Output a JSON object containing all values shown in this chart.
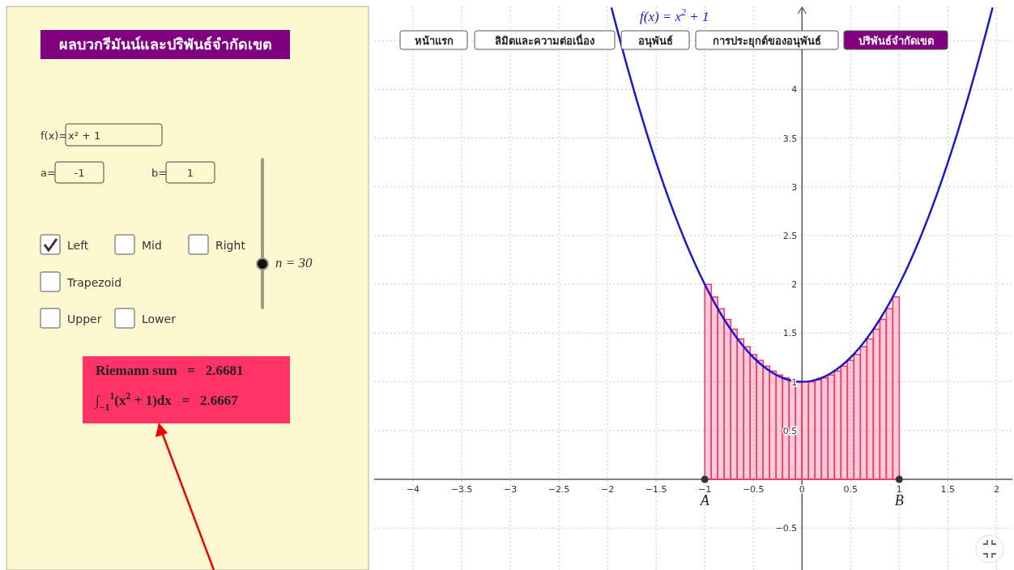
{
  "chart_data": {
    "type": "histogram",
    "title": "ผลบวกรีมันน์และปริพันธ์จำกัดเขต",
    "xlim": [
      -4.4,
      2.18
    ],
    "ylim": [
      -0.93,
      4.85
    ],
    "xticks": [
      {
        "value": -4,
        "label": "−4"
      },
      {
        "value": -3.5,
        "label": "−3.5"
      },
      {
        "value": -3,
        "label": "−3"
      },
      {
        "value": -2.5,
        "label": "−2.5"
      },
      {
        "value": -2,
        "label": "−2"
      },
      {
        "value": -1.5,
        "label": "−1.5"
      },
      {
        "value": -1,
        "label": "−1"
      },
      {
        "value": -0.5,
        "label": "−0.5"
      },
      0,
      0.5,
      1,
      1.5,
      2
    ],
    "yticks": [
      {
        "value": -0.5,
        "label": "−0.5"
      },
      0.5,
      1,
      1.5,
      2,
      2.5,
      3,
      3.5,
      4,
      {
        "value": 4.5,
        "label": null
      }
    ],
    "grid": true,
    "series": [
      {
        "color": "#ff3366",
        "bins": [
          -1,
          -0.9333,
          -0.8667,
          -0.8,
          -0.7333,
          -0.6667,
          -0.6,
          -0.5333,
          -0.4667,
          -0.4,
          -0.3333,
          -0.2667,
          -0.2,
          -0.1333,
          -0.0667,
          0,
          0.0667,
          0.1333,
          0.2,
          0.2667,
          0.3333,
          0.4,
          0.4667,
          0.5333,
          0.6,
          0.6667,
          0.7333,
          0.8,
          0.8667,
          0.9333,
          1
        ],
        "values": [
          2,
          1.87,
          1.75,
          1.64,
          1.54,
          1.44,
          1.36,
          1.28,
          1.22,
          1.16,
          1.11,
          1.07,
          1.04,
          1.02,
          1,
          1,
          1,
          1.02,
          1.04,
          1.07,
          1.11,
          1.16,
          1.22,
          1.28,
          1.36,
          1.44,
          1.54,
          1.64,
          1.75,
          1.87
        ]
      },
      {
        "type": "line",
        "name": "f(x) = x$^{2}$ + 1",
        "color": "#1a1acc",
        "x": [
          -1.96,
          -1.9,
          -1.8,
          -1.7,
          -1.6,
          -1.5,
          -1.4,
          -1.3,
          -1.2,
          -1.1,
          -1,
          -0.9,
          -0.8,
          -0.7,
          -0.6,
          -0.5,
          -0.4,
          -0.3,
          -0.2,
          -0.1,
          0,
          0.1,
          0.2,
          0.3,
          0.4,
          0.5,
          0.6,
          0.7,
          0.8,
          0.9,
          1,
          1.1,
          1.2,
          1.3,
          1.4,
          1.5,
          1.6,
          1.7,
          1.8,
          1.9,
          1.96
        ],
        "values": [
          4.84,
          4.61,
          4.24,
          3.89,
          3.56,
          3.25,
          2.96,
          2.69,
          2.44,
          2.21,
          2,
          1.81,
          1.64,
          1.49,
          1.36,
          1.25,
          1.16,
          1.09,
          1.04,
          1.01,
          1,
          1.01,
          1.04,
          1.09,
          1.16,
          1.25,
          1.36,
          1.49,
          1.64,
          1.81,
          2,
          2.21,
          2.44,
          2.69,
          2.96,
          3.25,
          3.56,
          3.89,
          4.24,
          4.61,
          4.84
        ]
      }
    ],
    "annotations": [
      "f(x)=",
      "x² + 1",
      "a=",
      "-1",
      "b=",
      "1",
      "Left",
      "Mid",
      "Right",
      "Trapezoid",
      "Upper",
      "Lower",
      "n = 30",
      "Riemann sum   =   2.6681",
      "∫$_{−1}$$^{1}$(x$^{2}$ + 1)dx   =   2.6667",
      "หน้าแรก",
      "ลิมิตและความต่อเนื่อง",
      "อนุพันธ์",
      "การประยุกต์ของอนุพันธ์",
      "ปริพันธ์จำกัดเขต",
      {
        "text": "A",
        "x": -1,
        "y": 0
      },
      {
        "text": "B",
        "x": 1,
        "y": 0
      }
    ]
  }
}
